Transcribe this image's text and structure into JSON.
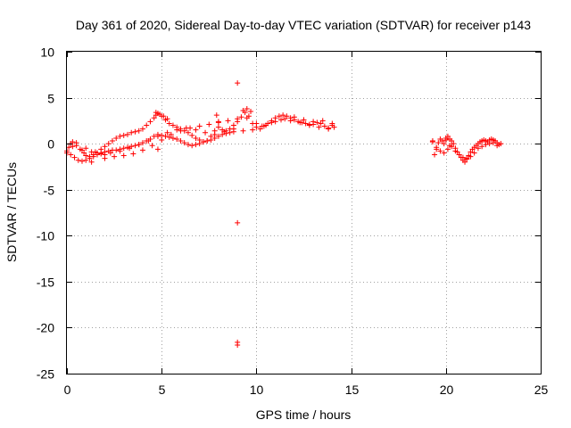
{
  "chart_data": {
    "type": "scatter",
    "title": "Day 361 of 2020, Sidereal Day-to-day VTEC variation (SDTVAR) for receiver p143",
    "xlabel": "GPS time / hours",
    "ylabel": "SDTVAR / TECUs",
    "xlim": [
      0,
      25
    ],
    "ylim": [
      -25,
      10
    ],
    "xticks": [
      "0",
      "5",
      "10",
      "15",
      "20",
      "25"
    ],
    "yticks": [
      "10",
      "5",
      "0",
      "-5",
      "-10",
      "-15",
      "-20",
      "-25"
    ],
    "grid": true,
    "marker": "+",
    "color": "#ff0000",
    "series": [
      {
        "name": "SDTVAR",
        "x": [
          0.0,
          0.1,
          0.2,
          0.3,
          0.5,
          0.7,
          0.9,
          1.0,
          1.2,
          1.4,
          1.6,
          1.8,
          2.0,
          2.2,
          2.4,
          2.6,
          2.8,
          3.0,
          3.2,
          3.4,
          3.6,
          3.8,
          4.0,
          4.2,
          4.4,
          4.6,
          4.7,
          4.8,
          5.0,
          5.2,
          5.4,
          5.6,
          5.8,
          6.0,
          6.2,
          6.4,
          6.6,
          6.8,
          7.0,
          7.2,
          7.4,
          7.6,
          7.8,
          8.0,
          8.2,
          8.4,
          8.6,
          8.8,
          9.0,
          9.2,
          9.4,
          9.6,
          9.8,
          10.0,
          10.2,
          10.4,
          10.6,
          10.8,
          11.0,
          11.2,
          11.4,
          11.6,
          11.8,
          12.0,
          12.2,
          12.4,
          12.6,
          12.8,
          13.0,
          13.2,
          13.4,
          13.6,
          13.8,
          14.0,
          14.1,
          0.0,
          0.2,
          0.4,
          0.6,
          0.8,
          1.0,
          1.2,
          1.4,
          1.6,
          1.8,
          2.0,
          2.2,
          2.4,
          2.6,
          2.8,
          3.0,
          3.2,
          3.4,
          3.6,
          3.8,
          4.0,
          4.2,
          4.4,
          4.6,
          4.8,
          5.0,
          5.2,
          5.4,
          5.6,
          5.8,
          6.0,
          6.2,
          6.4,
          6.6,
          6.8,
          7.0,
          7.2,
          7.4,
          7.6,
          7.8,
          8.0,
          8.2,
          8.4,
          8.6,
          8.8,
          0.5,
          1.0,
          1.5,
          2.0,
          2.5,
          3.0,
          3.5,
          4.0,
          4.5,
          5.0,
          5.5,
          6.0,
          6.5,
          7.0,
          7.5,
          8.0,
          8.5,
          9.0,
          9.5,
          10.0,
          10.5,
          11.0,
          11.5,
          12.0,
          12.5,
          13.0,
          13.5,
          14.0,
          0.3,
          0.8,
          1.3,
          1.8,
          2.3,
          2.8,
          3.3,
          3.8,
          4.3,
          4.8,
          5.3,
          5.8,
          6.3,
          6.8,
          7.3,
          7.8,
          8.3,
          8.8,
          9.3,
          9.8,
          10.3,
          10.8,
          11.3,
          11.8,
          12.3,
          12.8,
          13.3,
          13.8,
          4.7,
          4.9,
          5.1,
          5.3,
          7.9,
          8.0,
          9.3,
          9.5,
          9.7,
          4.8,
          2.0,
          1.3,
          9.0,
          9.0,
          9.0,
          9.0,
          19.3,
          19.4,
          19.5,
          19.6,
          19.7,
          19.8,
          19.9,
          20.0,
          20.1,
          20.2,
          20.3,
          20.4,
          20.5,
          20.6,
          20.7,
          20.8,
          20.9,
          21.0,
          21.1,
          21.2,
          21.3,
          21.4,
          21.5,
          21.6,
          21.7,
          21.8,
          21.9,
          22.0,
          22.1,
          22.2,
          22.3,
          22.4,
          22.5,
          22.6,
          22.7,
          22.8,
          22.9,
          19.5,
          19.7,
          19.9,
          20.1,
          20.3,
          20.5,
          20.7,
          20.9,
          21.1,
          21.3,
          21.5,
          21.7,
          21.9,
          22.1,
          22.3,
          22.5,
          22.7,
          19.3,
          20.0,
          20.2
        ],
        "y": [
          -0.8,
          -0.4,
          0.0,
          0.2,
          -0.2,
          -0.6,
          -1.0,
          -1.3,
          -1.4,
          -1.2,
          -1.0,
          -0.6,
          -0.3,
          0.0,
          0.3,
          0.6,
          0.8,
          0.9,
          1.0,
          1.2,
          1.3,
          1.4,
          1.6,
          2.0,
          2.4,
          2.8,
          3.1,
          3.3,
          3.0,
          2.6,
          2.2,
          2.0,
          1.8,
          1.6,
          1.4,
          1.2,
          0.9,
          0.6,
          0.4,
          0.2,
          0.3,
          0.8,
          1.4,
          1.8,
          1.5,
          1.4,
          1.6,
          2.0,
          2.4,
          2.9,
          3.4,
          3.0,
          2.2,
          1.8,
          1.6,
          1.9,
          2.2,
          2.5,
          2.8,
          3.0,
          3.1,
          3.0,
          2.8,
          2.6,
          2.4,
          2.3,
          2.2,
          2.0,
          2.1,
          2.3,
          2.2,
          1.9,
          1.7,
          2.0,
          1.8,
          -1.0,
          -1.2,
          -1.5,
          -1.8,
          -1.9,
          -1.8,
          -1.6,
          -1.4,
          -1.2,
          -1.0,
          -0.9,
          -0.8,
          -0.7,
          -0.7,
          -0.6,
          -0.5,
          -0.4,
          -0.3,
          -0.2,
          -0.1,
          0.1,
          0.3,
          0.5,
          0.8,
          1.0,
          0.9,
          0.8,
          0.7,
          0.6,
          0.5,
          0.3,
          0.1,
          -0.1,
          -0.2,
          -0.1,
          0.0,
          0.2,
          0.3,
          0.4,
          0.6,
          0.8,
          1.0,
          1.1,
          1.2,
          1.3,
          0.1,
          -0.5,
          -0.9,
          -1.2,
          -1.4,
          -1.3,
          -1.1,
          -0.7,
          -0.2,
          0.4,
          1.0,
          1.4,
          1.7,
          1.9,
          2.1,
          2.3,
          2.5,
          2.7,
          2.8,
          2.2,
          2.0,
          2.4,
          2.7,
          2.9,
          2.6,
          2.4,
          2.5,
          2.2,
          -0.3,
          -0.7,
          -0.9,
          -1.1,
          -1.0,
          -0.8,
          -0.5,
          -0.1,
          0.3,
          0.8,
          1.2,
          1.5,
          1.7,
          1.5,
          1.2,
          1.0,
          1.3,
          1.6,
          1.4,
          1.5,
          1.9,
          2.3,
          2.6,
          2.5,
          2.3,
          2.1,
          1.8,
          1.6,
          3.4,
          3.2,
          3.0,
          2.7,
          3.1,
          2.4,
          3.6,
          3.8,
          3.5,
          -0.6,
          -1.6,
          -2.0,
          6.6,
          -8.6,
          -21.6,
          -21.9,
          0.2,
          -1.2,
          -0.6,
          0.1,
          0.5,
          0.3,
          0.0,
          0.4,
          0.8,
          0.5,
          0.3,
          0.0,
          -0.5,
          -0.9,
          -1.2,
          -1.5,
          -1.8,
          -2.0,
          -1.7,
          -1.3,
          -0.9,
          -0.6,
          -0.4,
          -0.2,
          0.0,
          0.2,
          0.3,
          0.4,
          0.3,
          0.2,
          0.4,
          0.5,
          0.4,
          0.3,
          0.1,
          -0.1,
          0.0,
          -0.4,
          -0.8,
          -1.0,
          -0.6,
          -0.3,
          -0.8,
          -1.2,
          -1.5,
          -1.6,
          -1.4,
          -1.0,
          -0.5,
          -0.3,
          -0.1,
          0.0,
          0.1,
          -0.2,
          0.3,
          0.6,
          -0.2
        ]
      }
    ]
  }
}
